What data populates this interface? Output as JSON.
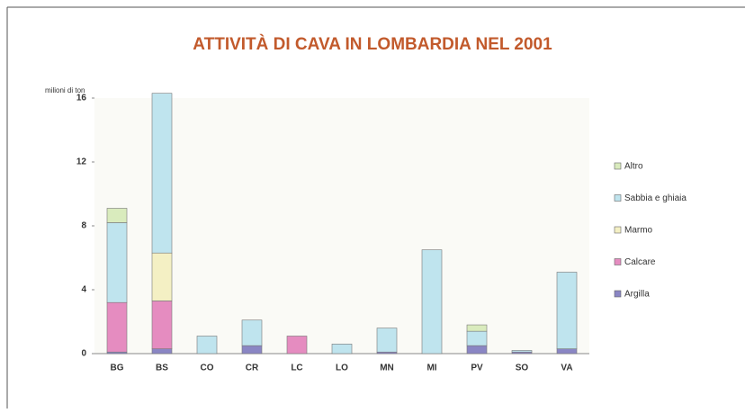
{
  "chart_data": {
    "type": "stacked_bar",
    "title": "ATTIVITÀ DI CAVA IN LOMBARDIA NEL 2001",
    "y_label": "milioni di ton",
    "categories": [
      "BG",
      "BS",
      "CO",
      "CR",
      "LC",
      "LO",
      "MN",
      "MI",
      "PV",
      "SO",
      "VA"
    ],
    "series": [
      {
        "name": "Argilla",
        "color": "#8a86c4",
        "values": [
          0.1,
          0.3,
          0,
          0.5,
          0,
          0,
          0.1,
          0,
          0.5,
          0.1,
          0.3
        ]
      },
      {
        "name": "Calcare",
        "color": "#e58cc0",
        "values": [
          3.1,
          3.0,
          0,
          0,
          1.1,
          0,
          0,
          0,
          0,
          0,
          0
        ]
      },
      {
        "name": "Marmo",
        "color": "#f4f0c4",
        "values": [
          0,
          3.0,
          0,
          0,
          0,
          0,
          0,
          0,
          0,
          0,
          0
        ]
      },
      {
        "name": "Sabbia e ghiaia",
        "color": "#bfe4ee",
        "values": [
          5.0,
          10.0,
          1.1,
          1.6,
          0,
          0.6,
          1.5,
          6.5,
          0.9,
          0.1,
          4.8
        ]
      },
      {
        "name": "Altro",
        "color": "#d9ebbd",
        "values": [
          0.9,
          0,
          0,
          0,
          0,
          0,
          0,
          0,
          0.4,
          0,
          0
        ]
      }
    ],
    "ylim": [
      0,
      16
    ],
    "yticks": [
      0,
      4,
      8,
      12,
      16
    ],
    "grid": false,
    "legend": "right"
  }
}
